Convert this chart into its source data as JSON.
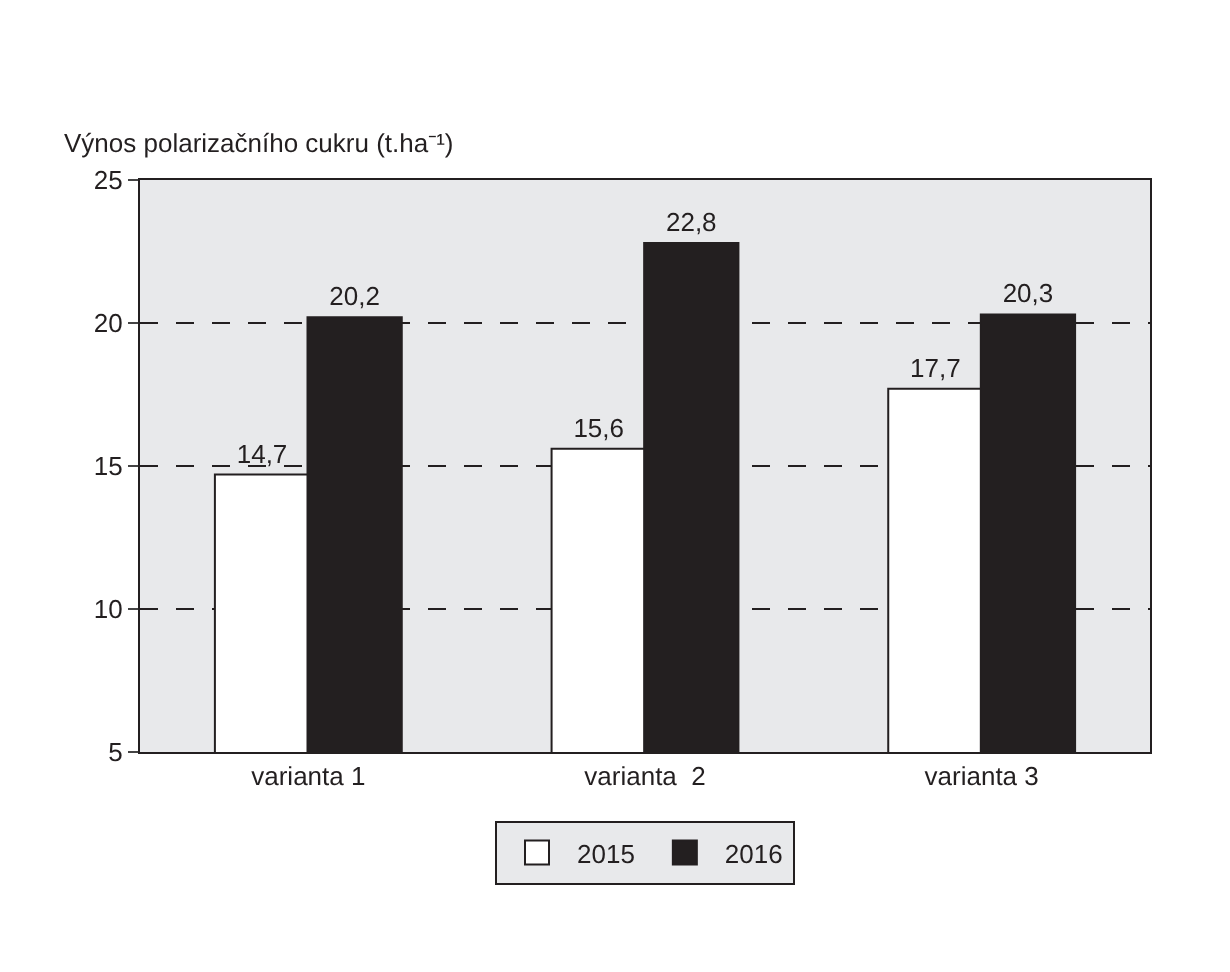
{
  "chart_data": {
    "type": "bar",
    "ylabel": "Výnos polarizačního cukru (t.ha⁻¹)",
    "categories": [
      "varianta 1",
      "varianta  2",
      "varianta 3"
    ],
    "series": [
      {
        "name": "2015",
        "color": "#ffffff",
        "values": [
          14.7,
          15.6,
          17.7
        ],
        "value_labels": [
          "14,7",
          "15,6",
          "17,7"
        ]
      },
      {
        "name": "2016",
        "color": "#231f20",
        "values": [
          20.2,
          22.8,
          20.3
        ],
        "value_labels": [
          "20,2",
          "22,8",
          "20,3"
        ]
      }
    ],
    "ylim": [
      5,
      25
    ],
    "yticks": [
      5,
      10,
      15,
      20,
      25
    ],
    "grid": "y",
    "legend": "bottom"
  }
}
